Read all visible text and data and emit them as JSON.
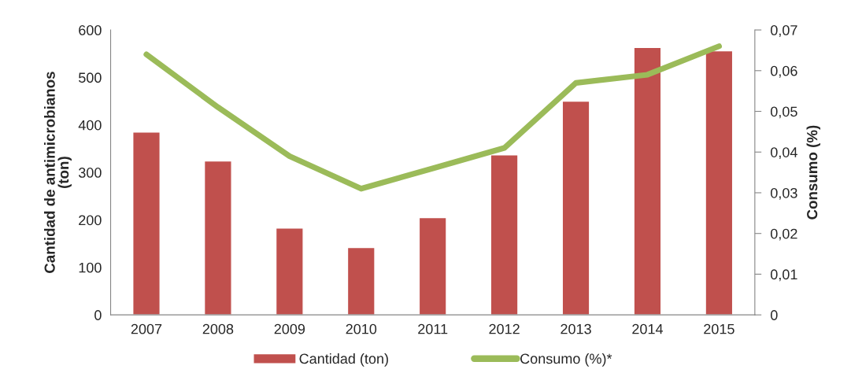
{
  "chart_data": {
    "type": "bar",
    "categories": [
      "2007",
      "2008",
      "2009",
      "2010",
      "2011",
      "2012",
      "2013",
      "2014",
      "2015"
    ],
    "series": [
      {
        "name": "Cantidad (ton)",
        "color": "#c0504d",
        "values": [
          385,
          324,
          183,
          142,
          205,
          337,
          450,
          563,
          556
        ]
      },
      {
        "name": "Consumo (%)*",
        "type": "line",
        "axis": "y2",
        "color": "#9bbb59",
        "values": [
          0.064,
          0.051,
          0.039,
          0.031,
          0.036,
          0.041,
          0.057,
          0.059,
          0.066
        ]
      }
    ],
    "ylabel": "Cantidad de antimicrobianos\n(ton)",
    "y2label": "Consumo (%)",
    "ylim": [
      0,
      600
    ],
    "yticks": [
      0,
      100,
      200,
      300,
      400,
      500,
      600
    ],
    "y2lim": [
      0,
      0.07
    ],
    "y2ticks": [
      0,
      {
        "value": 0.01,
        "label": "0,01"
      },
      {
        "value": 0.02,
        "label": "0,02"
      },
      {
        "value": 0.03,
        "label": "0,03"
      },
      {
        "value": 0.04,
        "label": "0,04"
      },
      {
        "value": 0.05,
        "label": "0,05"
      },
      {
        "value": 0.06,
        "label": "0,06"
      },
      {
        "value": 0.07,
        "label": "0,07"
      }
    ],
    "legend": "bottom"
  }
}
